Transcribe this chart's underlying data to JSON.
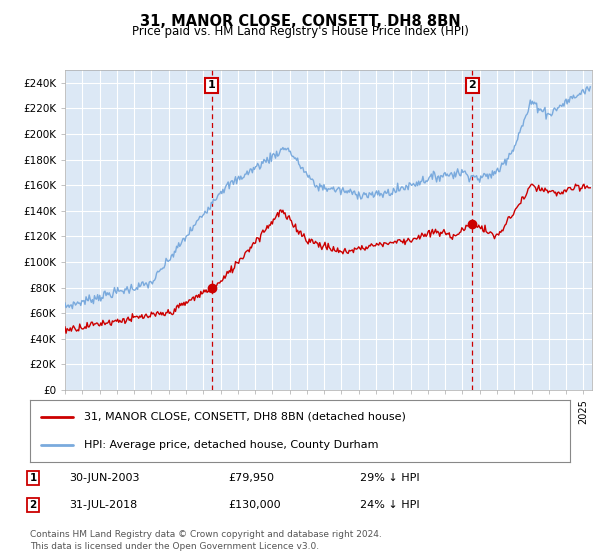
{
  "title": "31, MANOR CLOSE, CONSETT, DH8 8BN",
  "subtitle": "Price paid vs. HM Land Registry's House Price Index (HPI)",
  "ylim": [
    0,
    250000
  ],
  "xlim_start": 1995.0,
  "xlim_end": 2025.5,
  "legend_line1": "31, MANOR CLOSE, CONSETT, DH8 8BN (detached house)",
  "legend_line2": "HPI: Average price, detached house, County Durham",
  "sale1_date": "30-JUN-2003",
  "sale1_price": "£79,950",
  "sale1_hpi": "29% ↓ HPI",
  "sale2_date": "31-JUL-2018",
  "sale2_price": "£130,000",
  "sale2_hpi": "24% ↓ HPI",
  "footnote1": "Contains HM Land Registry data © Crown copyright and database right 2024.",
  "footnote2": "This data is licensed under the Open Government Licence v3.0.",
  "hpi_color": "#7aaadd",
  "price_color": "#cc0000",
  "bg_chart": "#dce8f5",
  "grid_color": "#ffffff",
  "marker1_x": 2003.49,
  "marker1_y": 79950,
  "marker2_x": 2018.58,
  "marker2_y": 130000
}
